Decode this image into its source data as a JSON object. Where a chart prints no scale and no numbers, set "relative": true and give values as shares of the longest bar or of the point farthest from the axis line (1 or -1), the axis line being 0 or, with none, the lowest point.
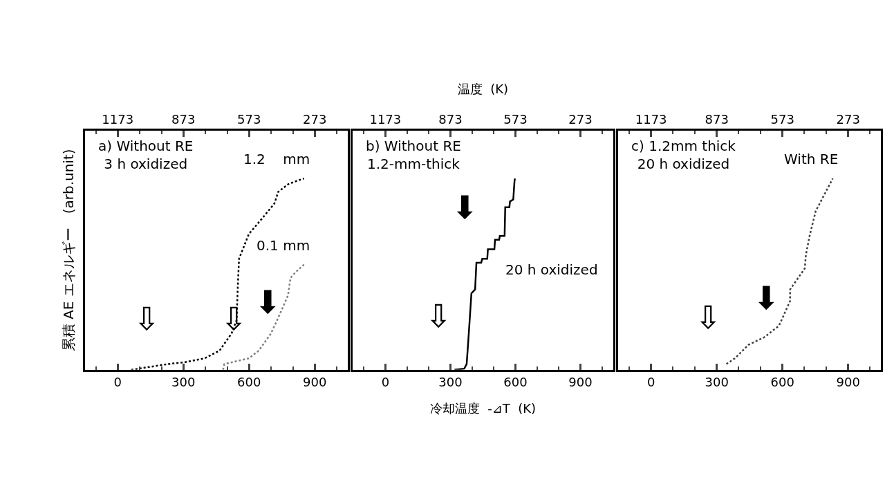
{
  "chart_data": [
    {
      "type": "line",
      "relative": true,
      "ylabel": "累積 AE エネルギー　(arb.unit)",
      "xlim": [
        -150,
        1050
      ],
      "xticks": [
        0,
        300,
        600,
        900
      ],
      "x2lim": [
        1323,
        123
      ],
      "x2ticks": [
        1173,
        873,
        573,
        273
      ],
      "annotations": [
        "a) Without RE\n3 h oxidized",
        "⇩",
        "⇩",
        "⬇"
      ],
      "series": [
        {
          "name": "1.2    mm",
          "color": "#000000",
          "line_style": "dotted",
          "x": [
            62,
            229,
            308,
            397,
            465,
            520,
            543,
            548,
            554,
            599,
            666,
            716,
            733,
            778,
            823,
            851
          ],
          "values": [
            0,
            0.03,
            0.04,
            0.06,
            0.1,
            0.19,
            0.26,
            0.42,
            0.58,
            0.71,
            0.8,
            0.87,
            0.93,
            0.97,
            0.99,
            1.0
          ]
        },
        {
          "name": "0.1 mm",
          "color": "#808080",
          "line_style": "dotted",
          "x": [
            481,
            487,
            599,
            644,
            700,
            744,
            778,
            789,
            812,
            851
          ],
          "values": [
            0,
            0.03,
            0.06,
            0.1,
            0.19,
            0.3,
            0.39,
            0.48,
            0.51,
            0.55
          ]
        }
      ]
    },
    {
      "type": "line",
      "relative": true,
      "xlabel": "冷却温度  -⊿T  (K)",
      "x2label": "温度  (K)",
      "xlim": [
        -150,
        1050
      ],
      "xticks": [
        0,
        300,
        600,
        900
      ],
      "x2lim": [
        1323,
        123
      ],
      "x2ticks": [
        1173,
        873,
        573,
        273
      ],
      "annotations": [
        "b) Without RE\n1.2-mm-thick",
        "20 h oxidized",
        "⬇",
        "⇩"
      ],
      "series": [
        {
          "color": "#000000",
          "line_style": "solid",
          "x": [
            319,
            364,
            375,
            380,
            386,
            397,
            414,
            420,
            442,
            447,
            470,
            473,
            503,
            506,
            525,
            528,
            550,
            553,
            572,
            575,
            590,
            596,
            598
          ],
          "values": [
            0,
            0.006,
            0.03,
            0.11,
            0.21,
            0.4,
            0.42,
            0.56,
            0.56,
            0.58,
            0.58,
            0.63,
            0.63,
            0.68,
            0.68,
            0.7,
            0.7,
            0.85,
            0.85,
            0.88,
            0.89,
            0.99,
            1.0
          ]
        }
      ]
    },
    {
      "type": "line",
      "relative": true,
      "xlim": [
        -150,
        1050
      ],
      "xticks": [
        0,
        300,
        600,
        900
      ],
      "x2lim": [
        1323,
        123
      ],
      "x2ticks": [
        1173,
        873,
        573,
        273
      ],
      "annotations": [
        "c) 1.2mm thick\n20 h oxidized",
        "⬇",
        "⇩"
      ],
      "series": [
        {
          "name": "With RE",
          "color": "#404040",
          "line_style": "dotted",
          "x": [
            344,
            383,
            444,
            517,
            584,
            635,
            635,
            702,
            707,
            724,
            752,
            830
          ],
          "values": [
            0.03,
            0.06,
            0.13,
            0.17,
            0.23,
            0.36,
            0.42,
            0.53,
            0.6,
            0.7,
            0.83,
            1.0
          ]
        }
      ]
    }
  ]
}
